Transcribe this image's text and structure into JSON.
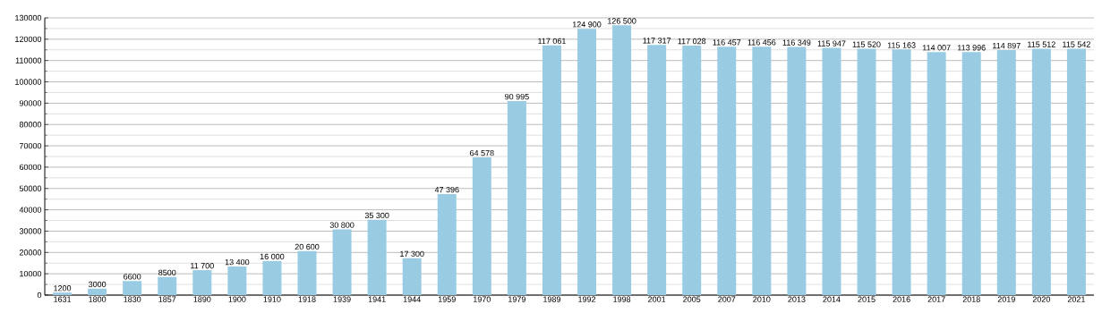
{
  "chart_data": {
    "type": "bar",
    "categories": [
      "1631",
      "1800",
      "1830",
      "1857",
      "1890",
      "1900",
      "1910",
      "1918",
      "1939",
      "1941",
      "1944",
      "1959",
      "1970",
      "1979",
      "1989",
      "1992",
      "1998",
      "2001",
      "2005",
      "2007",
      "2010",
      "2013",
      "2014",
      "2015",
      "2016",
      "2017",
      "2018",
      "2019",
      "2020",
      "2021"
    ],
    "values": [
      1200,
      3000,
      6600,
      8500,
      11700,
      13400,
      16000,
      20600,
      30800,
      35300,
      17300,
      47396,
      64578,
      90995,
      117061,
      124900,
      126500,
      117317,
      117028,
      116457,
      116456,
      116349,
      115947,
      115520,
      115163,
      114007,
      113996,
      114897,
      115512,
      115542
    ],
    "value_labels": [
      "1200",
      "3000",
      "6600",
      "8500",
      "11 700",
      "13 400",
      "16 000",
      "20 600",
      "30 800",
      "35 300",
      "17 300",
      "47 396",
      "64 578",
      "90 995",
      "117 061",
      "124 900",
      "126 500",
      "117 317",
      "117 028",
      "116 457",
      "116 456",
      "116 349",
      "115 947",
      "115 520",
      "115 163",
      "114 007",
      "113 996",
      "114 897",
      "115 512",
      "115 542"
    ],
    "color": "#99cce3",
    "ylim": [
      0,
      130000
    ],
    "yticks": [
      0,
      {
        "value": 5000,
        "label": null
      },
      10000,
      {
        "value": 15000,
        "label": null
      },
      20000,
      {
        "value": 25000,
        "label": null
      },
      30000,
      {
        "value": 35000,
        "label": null
      },
      40000,
      {
        "value": 45000,
        "label": null
      },
      50000,
      {
        "value": 55000,
        "label": null
      },
      60000,
      {
        "value": 65000,
        "label": null
      },
      70000,
      {
        "value": 75000,
        "label": null
      },
      80000,
      {
        "value": 85000,
        "label": null
      },
      90000,
      {
        "value": 95000,
        "label": null
      },
      100000,
      {
        "value": 105000,
        "label": null
      },
      110000,
      {
        "value": 115000,
        "label": null
      },
      120000,
      {
        "value": 125000,
        "label": null
      },
      130000
    ],
    "grid": "y"
  }
}
